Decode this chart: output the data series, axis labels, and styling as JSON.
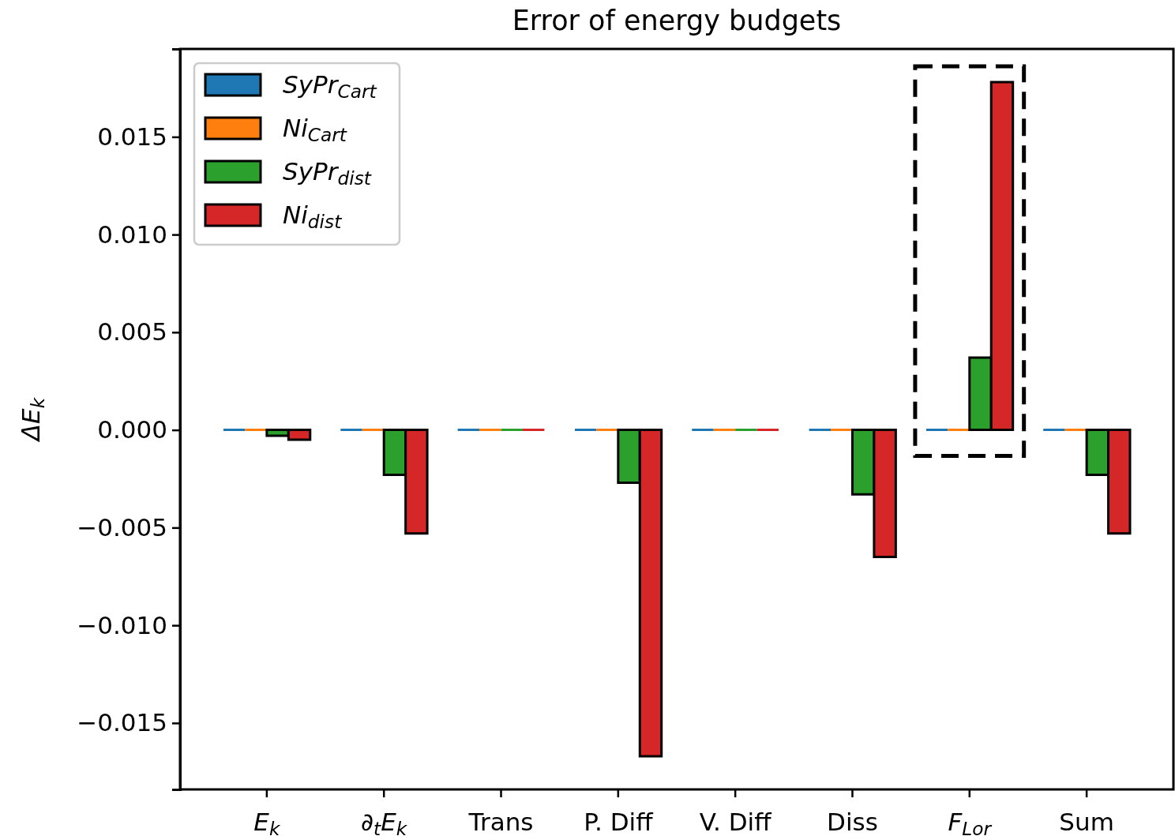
{
  "chart_data": {
    "type": "bar",
    "title": "Error of energy budgets",
    "ylabel": "ΔE$_{k}$",
    "categories": [
      "E$_{k}$",
      "∂$_{t}$E$_{k}$",
      "Trans",
      "P. Diff",
      "V. Diff",
      "Diss",
      "F$_{Lor}$",
      "Sum"
    ],
    "series": [
      {
        "name": "SyPr$_{Cart}$",
        "color": "#1f77b4",
        "values": [
          0,
          0,
          0,
          0,
          0,
          0,
          0,
          0
        ]
      },
      {
        "name": "Ni$_{Cart}$",
        "color": "#ff7f0e",
        "values": [
          0,
          0,
          0,
          0,
          0,
          0,
          0,
          0
        ]
      },
      {
        "name": "SyPr$_{dist}$",
        "color": "#2ca02c",
        "values": [
          -0.0003,
          -0.0023,
          0,
          -0.0027,
          0,
          -0.0033,
          0.0037,
          -0.0023
        ]
      },
      {
        "name": "Ni$_{dist}$",
        "color": "#d62728",
        "values": [
          -0.0005,
          -0.0053,
          0,
          -0.0167,
          0,
          -0.0065,
          0.0178,
          -0.0053
        ]
      }
    ],
    "ylim": [
      -0.0184,
      0.0195
    ],
    "yticks": [
      {
        "value": -0.015,
        "label": "−0.015"
      },
      {
        "value": -0.01,
        "label": "−0.010"
      },
      {
        "value": -0.005,
        "label": "−0.005"
      },
      {
        "value": 0,
        "label": "0.000"
      },
      {
        "value": 0.005,
        "label": "0.005"
      },
      {
        "value": 0.01,
        "label": "0.010"
      },
      {
        "value": 0.015,
        "label": "0.015"
      }
    ],
    "grid": false,
    "legend": "top left"
  }
}
